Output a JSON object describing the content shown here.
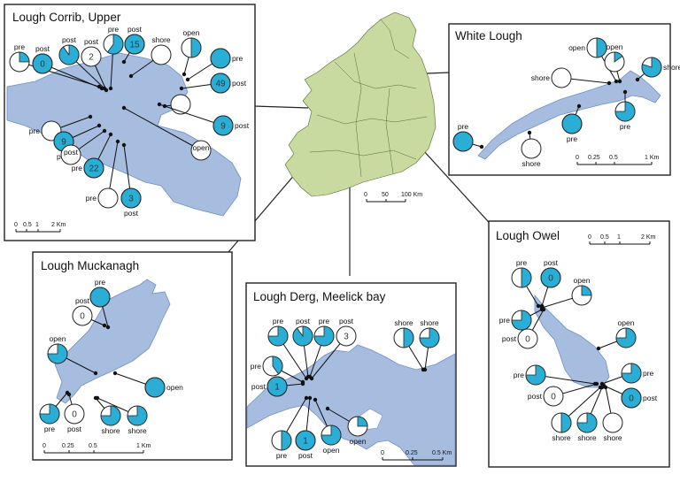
{
  "colors": {
    "pie_fill": "#2aaed6",
    "lake": "#a7bde0",
    "land": "#c9daa0",
    "outline": "#222222"
  },
  "overview": {
    "scale_labels": [
      "0",
      "50",
      "100 Km"
    ]
  },
  "panels": [
    {
      "id": "corrib",
      "title": "Lough Corrib, Upper",
      "scale_labels": [
        "0",
        "0.5",
        "1",
        "2 Km"
      ],
      "sites": [
        {
          "label": "pre",
          "fraction": 0.25,
          "number": ""
        },
        {
          "label": "post",
          "fraction": 1.0,
          "number": "0"
        },
        {
          "label": "post",
          "fraction": 0.9,
          "number": ""
        },
        {
          "label": "post",
          "fraction": 0.0,
          "number": "2"
        },
        {
          "label": "pre",
          "fraction": 0.6,
          "number": ""
        },
        {
          "label": "post",
          "fraction": 1.0,
          "number": "15"
        },
        {
          "label": "shore",
          "fraction": 0.0,
          "number": ""
        },
        {
          "label": "open",
          "fraction": 0.5,
          "number": ""
        },
        {
          "label": "pre",
          "fraction": 1.0,
          "number": ""
        },
        {
          "label": "post",
          "fraction": 1.0,
          "number": "49"
        },
        {
          "label": "",
          "fraction": 0.0,
          "number": ""
        },
        {
          "label": "post",
          "fraction": 1.0,
          "number": "9"
        },
        {
          "label": "pre",
          "fraction": 0.0,
          "number": ""
        },
        {
          "label": "post",
          "fraction": 1.0,
          "number": "9"
        },
        {
          "label": "open",
          "fraction": 0.0,
          "number": ""
        },
        {
          "label": "pre",
          "fraction": 1.0,
          "number": "22"
        },
        {
          "label": "post",
          "fraction": 0.0,
          "number": ""
        },
        {
          "label": "pre",
          "fraction": 0.0,
          "number": ""
        },
        {
          "label": "post",
          "fraction": 1.0,
          "number": "3"
        }
      ]
    },
    {
      "id": "white",
      "title": "White Lough",
      "scale_labels": [
        "0",
        "0.25",
        "0.5",
        "1 Km"
      ],
      "sites": [
        {
          "label": "open",
          "fraction": 0.5,
          "number": ""
        },
        {
          "label": "open",
          "fraction": 0.15,
          "number": ""
        },
        {
          "label": "shore",
          "fraction": 0.8,
          "number": ""
        },
        {
          "label": "shore",
          "fraction": 0.0,
          "number": ""
        },
        {
          "label": "pre",
          "fraction": 1.0,
          "number": ""
        },
        {
          "label": "shore",
          "fraction": 0.0,
          "number": ""
        },
        {
          "label": "pre",
          "fraction": 1.0,
          "number": ""
        },
        {
          "label": "pre",
          "fraction": 0.75,
          "number": ""
        }
      ]
    },
    {
      "id": "muckanagh",
      "title": "Lough Muckanagh",
      "scale_labels": [
        "0",
        "0.25",
        "0.5",
        "1 Km"
      ],
      "sites": [
        {
          "label": "pre",
          "fraction": 1.0,
          "number": ""
        },
        {
          "label": "post",
          "fraction": 0.0,
          "number": "0"
        },
        {
          "label": "open",
          "fraction": 0.75,
          "number": ""
        },
        {
          "label": "open",
          "fraction": 1.0,
          "number": ""
        },
        {
          "label": "pre",
          "fraction": 0.75,
          "number": ""
        },
        {
          "label": "post",
          "fraction": 0.0,
          "number": "0"
        },
        {
          "label": "shore",
          "fraction": 0.75,
          "number": ""
        },
        {
          "label": "shore",
          "fraction": 0.75,
          "number": ""
        }
      ]
    },
    {
      "id": "derg",
      "title": "Lough Derg, Meelick bay",
      "scale_labels": [
        "0",
        "0.25",
        "0.5 Km"
      ],
      "sites": [
        {
          "label": "pre",
          "fraction": 0.75,
          "number": ""
        },
        {
          "label": "post",
          "fraction": 0.9,
          "number": ""
        },
        {
          "label": "pre",
          "fraction": 0.75,
          "number": ""
        },
        {
          "label": "post",
          "fraction": 0.0,
          "number": "3"
        },
        {
          "label": "shore",
          "fraction": 0.5,
          "number": ""
        },
        {
          "label": "shore",
          "fraction": 0.75,
          "number": ""
        },
        {
          "label": "pre",
          "fraction": 0.4,
          "number": ""
        },
        {
          "label": "post",
          "fraction": 1.0,
          "number": "1"
        },
        {
          "label": "pre",
          "fraction": 0.5,
          "number": ""
        },
        {
          "label": "post",
          "fraction": 1.0,
          "number": "1"
        },
        {
          "label": "open",
          "fraction": 0.75,
          "number": ""
        },
        {
          "label": "open",
          "fraction": 0.25,
          "number": ""
        }
      ]
    },
    {
      "id": "owel",
      "title": "Lough Owel",
      "scale_labels": [
        "0",
        "0.5",
        "1",
        "2 Km"
      ],
      "sites": [
        {
          "label": "pre",
          "fraction": 0.5,
          "number": ""
        },
        {
          "label": "post",
          "fraction": 1.0,
          "number": "0"
        },
        {
          "label": "open",
          "fraction": 0.25,
          "number": ""
        },
        {
          "label": "pre",
          "fraction": 0.75,
          "number": ""
        },
        {
          "label": "post",
          "fraction": 0.0,
          "number": "0"
        },
        {
          "label": "open",
          "fraction": 0.75,
          "number": ""
        },
        {
          "label": "pre",
          "fraction": 0.75,
          "number": ""
        },
        {
          "label": "post",
          "fraction": 0.0,
          "number": "0"
        },
        {
          "label": "pre",
          "fraction": 0.75,
          "number": ""
        },
        {
          "label": "post",
          "fraction": 1.0,
          "number": "0"
        },
        {
          "label": "shore",
          "fraction": 0.5,
          "number": ""
        },
        {
          "label": "shore",
          "fraction": 0.75,
          "number": ""
        },
        {
          "label": "shore",
          "fraction": 0.0,
          "number": ""
        }
      ]
    }
  ]
}
